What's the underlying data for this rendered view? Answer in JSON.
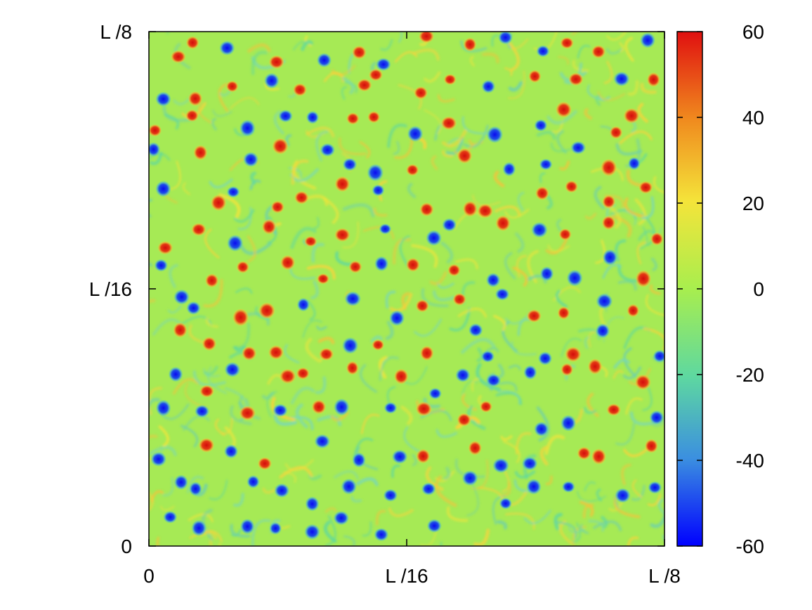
{
  "chart_data": {
    "type": "heatmap",
    "title": "",
    "xlabel": "",
    "ylabel": "",
    "x_ticks": [
      "0",
      "L /16",
      "L /8"
    ],
    "y_ticks": [
      "0",
      "L /16",
      "L /8"
    ],
    "colorbar": {
      "range": [
        -60,
        60
      ],
      "ticks": [
        60,
        40,
        20,
        0,
        -20,
        -40,
        -60
      ],
      "colormap": "jet",
      "colors": [
        "#0000ff",
        "#3b8fe0",
        "#5ed8a0",
        "#a8ee4e",
        "#f4e43a",
        "#f08a1e",
        "#e01010"
      ]
    },
    "background_value": 2,
    "field": "vorticity-like field with many small coherent vortices (positive = red, negative = blue) on a filamented turbulent background",
    "vortices_visible": {
      "positive_approx_count": 95,
      "negative_approx_count": 95,
      "peak_value": 60,
      "min_value": -60
    },
    "grid": false,
    "legend": "none"
  }
}
